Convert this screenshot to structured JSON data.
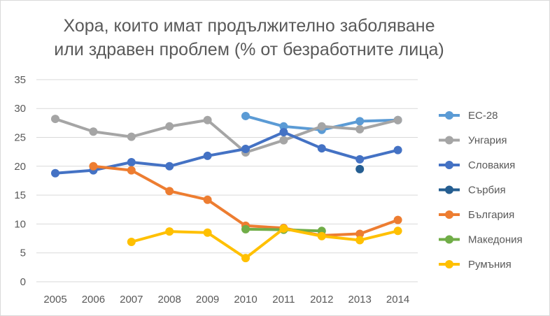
{
  "chart_data": {
    "type": "line",
    "title": [
      "Хора, които имат продължително заболяване",
      "или здравен проблем (% от безработните лица)"
    ],
    "xlabel": "",
    "ylabel": "",
    "categories": [
      "2005",
      "2006",
      "2007",
      "2008",
      "2009",
      "2010",
      "2011",
      "2012",
      "2013",
      "2014"
    ],
    "ylim": [
      0,
      35
    ],
    "yticks": [
      "0",
      "5",
      "10",
      "15",
      "20",
      "25",
      "30",
      "35"
    ],
    "grid": true,
    "legend": "right",
    "series": [
      {
        "name": "ЕС-28",
        "color": "#5B9BD5",
        "values": [
          null,
          null,
          null,
          null,
          null,
          28.7,
          26.9,
          26.3,
          27.8,
          28.0
        ]
      },
      {
        "name": "Унгария",
        "color": "#A5A5A5",
        "values": [
          28.2,
          26.0,
          25.1,
          26.9,
          28.0,
          22.4,
          24.5,
          26.9,
          26.4,
          28.0
        ]
      },
      {
        "name": "Словакия",
        "color": "#4472C4",
        "values": [
          18.8,
          19.3,
          20.7,
          20.0,
          21.8,
          23.0,
          25.9,
          23.1,
          21.2,
          22.8
        ]
      },
      {
        "name": "Сърбия",
        "color": "#255E91",
        "values": [
          null,
          null,
          null,
          null,
          null,
          null,
          null,
          null,
          19.5,
          null
        ]
      },
      {
        "name": "България",
        "color": "#ED7D31",
        "values": [
          null,
          20.0,
          19.3,
          15.7,
          14.2,
          9.7,
          9.3,
          8.0,
          8.3,
          10.7
        ]
      },
      {
        "name": "Македония",
        "color": "#70AD47",
        "values": [
          null,
          null,
          null,
          null,
          null,
          9.1,
          9.0,
          8.8,
          null,
          null
        ]
      },
      {
        "name": "Румъния",
        "color": "#FFC000",
        "values": [
          null,
          null,
          6.9,
          8.7,
          8.5,
          4.1,
          9.2,
          7.9,
          7.2,
          8.8
        ]
      }
    ]
  }
}
